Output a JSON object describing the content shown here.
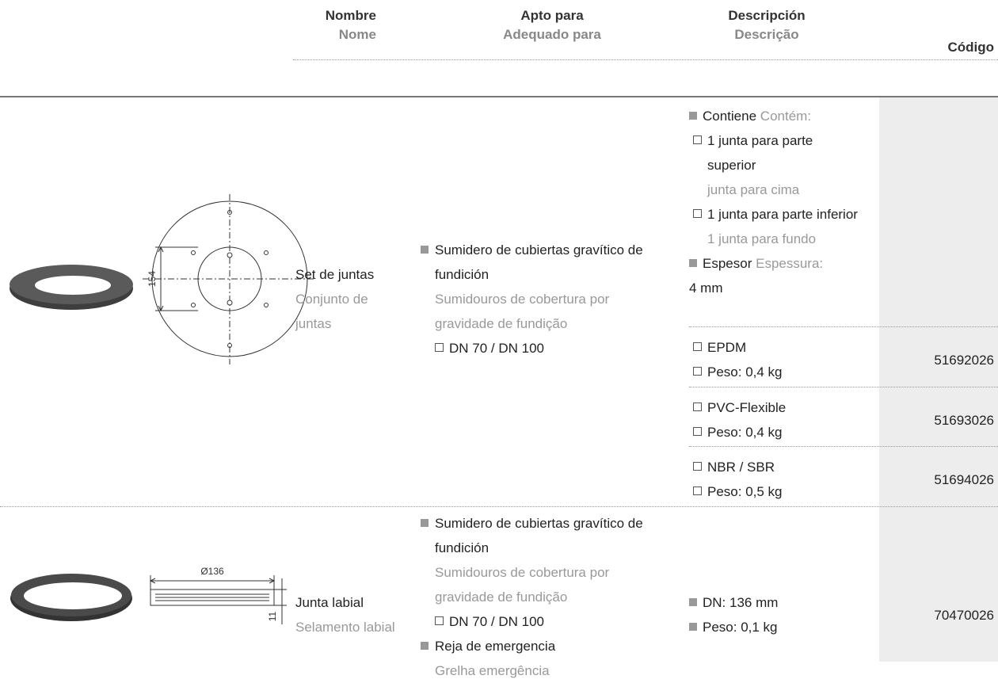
{
  "header": {
    "name": {
      "es": "Nombre",
      "pt": "Nome"
    },
    "suitable": {
      "es": "Apto para",
      "pt": "Adequado para"
    },
    "description": {
      "es": "Descripción",
      "pt": "Descrição"
    },
    "code": "Código"
  },
  "rows": [
    {
      "name": {
        "es": "Set de juntas",
        "pt": "Conjunto de juntas"
      },
      "drawing_dimensions": [
        "154"
      ],
      "suitable": [
        {
          "es": "Sumidero de cubiertas gravítico de fundición",
          "pt": "Sumidouros de cobertura por gravidade de fundição",
          "sub": [
            "DN 70 / DN 100"
          ]
        }
      ],
      "description": [
        {
          "es": "Contiene",
          "pt": "Contém:",
          "items": [
            {
              "es": "1 junta para parte superior",
              "pt": "junta para cima"
            },
            {
              "es": "1 junta para parte inferior",
              "pt": "1 junta para fundo"
            }
          ]
        },
        {
          "es": "Espesor",
          "pt": "Espessura:",
          "value": "4 mm"
        }
      ],
      "variants": [
        {
          "material": "EPDM",
          "weight": "Peso: 0,4 kg",
          "code": "51692026"
        },
        {
          "material": "PVC-Flexible",
          "weight": "Peso: 0,4 kg",
          "code": "51693026"
        },
        {
          "material": "NBR / SBR",
          "weight": "Peso: 0,5 kg",
          "code": "51694026"
        }
      ]
    },
    {
      "name": {
        "es": "Junta labial",
        "pt": "Selamento labial"
      },
      "drawing_dimensions": [
        "Ø136",
        "11"
      ],
      "suitable": [
        {
          "es": "Sumidero de cubiertas gravítico de fundición",
          "pt": "Sumidouros de cobertura por gravidade de fundição",
          "sub": [
            "DN 70 / DN 100"
          ]
        },
        {
          "es": "Reja de emergencia",
          "pt": "Grelha emergência"
        }
      ],
      "description": [
        "DN: 136 mm",
        "Peso: 0,1 kg"
      ],
      "code": "70470026"
    }
  ]
}
